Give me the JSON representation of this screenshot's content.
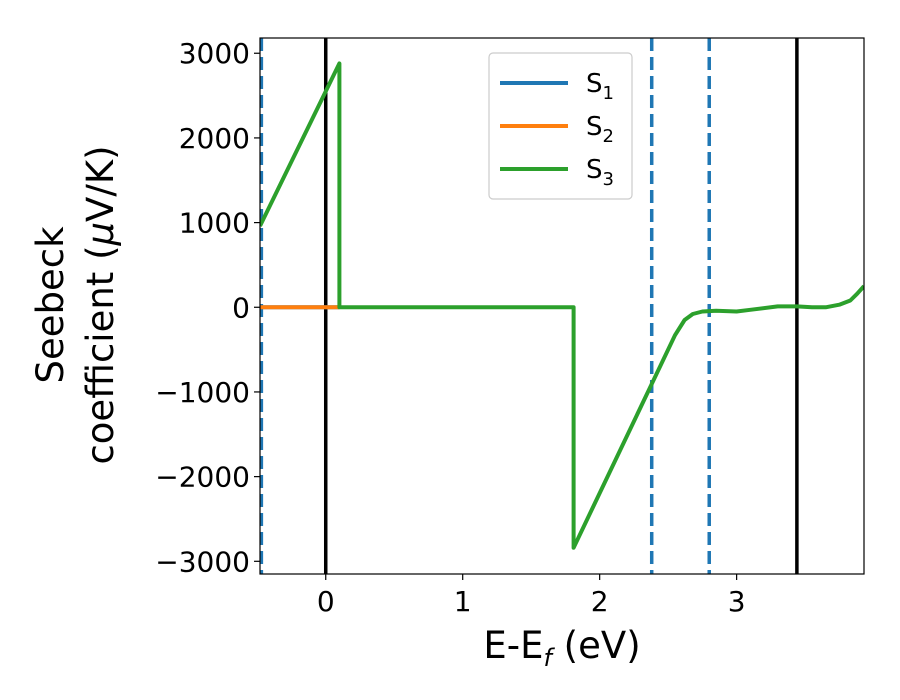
{
  "chart_data": {
    "type": "line",
    "xlabel": {
      "main": "E-E",
      "sub": "f",
      "rest": " (eV)"
    },
    "ylabel": {
      "line1": "Seebeck",
      "line2_prefix": "coefficient  (",
      "mu": "μ",
      "line2_suffix": "V/K)"
    },
    "xlim": [
      -0.48,
      3.93
    ],
    "ylim": [
      -3150,
      3180
    ],
    "xticks": [
      0,
      1,
      2,
      3
    ],
    "yticks": [
      3000,
      2000,
      1000,
      0,
      -1000,
      -2000,
      -3000
    ],
    "ytick_labels": [
      "3000",
      "2000",
      "1000",
      "0",
      "−1000",
      "−2000",
      "−3000"
    ],
    "legend_position": "top-center",
    "series": [
      {
        "name": "S",
        "sub": "1",
        "color": "#1f77b4",
        "x": [
          -0.48,
          0.1
        ],
        "y": [
          0,
          0
        ]
      },
      {
        "name": "S",
        "sub": "2",
        "color": "#ff7f0e",
        "x": [
          -0.48,
          0.1
        ],
        "y": [
          0,
          0
        ]
      },
      {
        "name": "S",
        "sub": "3",
        "color": "#2ca02c",
        "x": [
          -0.48,
          0.1,
          0.1,
          1.81,
          1.81,
          2.55,
          2.62,
          2.68,
          2.75,
          2.85,
          3.0,
          3.1,
          3.3,
          3.44,
          3.55,
          3.65,
          3.75,
          3.83,
          3.88,
          3.93
        ],
        "y": [
          960,
          2880,
          0,
          0,
          -2840,
          -330,
          -150,
          -80,
          -50,
          -40,
          -50,
          -30,
          10,
          10,
          0,
          0,
          30,
          80,
          160,
          250
        ]
      }
    ],
    "vlines": [
      {
        "x": 0.0,
        "style": "solid",
        "color": "#000000"
      },
      {
        "x": 3.44,
        "style": "solid",
        "color": "#000000"
      },
      {
        "x": -0.47,
        "style": "dashed",
        "color": "#1f77b4"
      },
      {
        "x": 2.38,
        "style": "dashed",
        "color": "#1f77b4"
      },
      {
        "x": 2.8,
        "style": "dashed",
        "color": "#1f77b4"
      }
    ]
  }
}
